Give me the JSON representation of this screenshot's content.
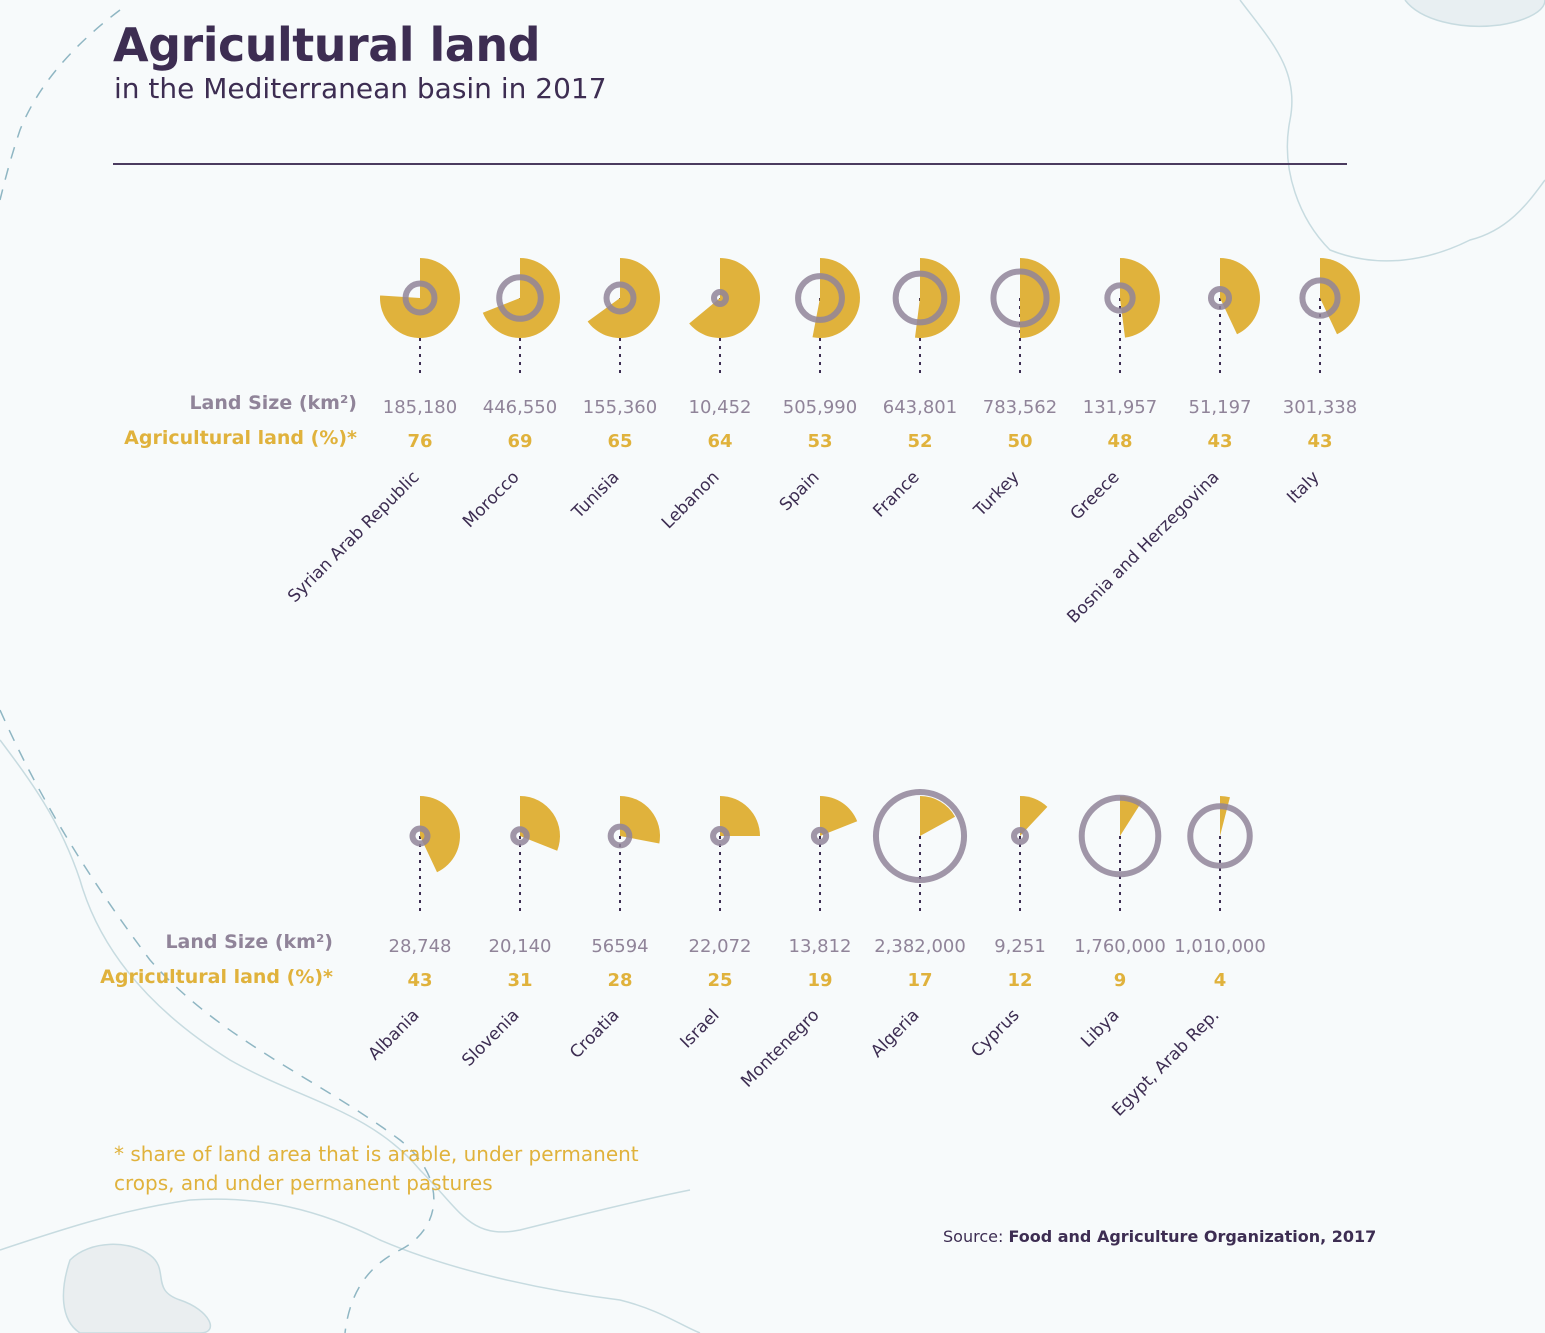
{
  "title": "Agricultural land",
  "subtitle": "in the Mediterranean basin in 2017",
  "row_labels": {
    "land_size": "Land Size (km²)",
    "agricultural_land": "Agricultural land (%)*"
  },
  "footnote": "* share of land area that is arable, under permanent crops, and under permanent pastures",
  "source": {
    "prefix": "Source: ",
    "name": "Food and Agriculture Organization, 2017"
  },
  "colors": {
    "agri": "#e0b23c",
    "ring": "#908499",
    "title": "#3d2d52",
    "map_line": "#c7dbe0",
    "map_dash": "#8fb6c3"
  },
  "chart_data": [
    {
      "type": "pie",
      "encoding": "wedge angle = agricultural land share; ring size = land size",
      "categories": [
        "Syrian Arab Republic",
        "Morocco",
        "Tunisia",
        "Lebanon",
        "Spain",
        "France",
        "Turkey",
        "Greece",
        "Bosnia and Herzegovina",
        "Italy"
      ],
      "land_size_labels": [
        "185,180",
        "446,550",
        "155,360",
        "10,452",
        "505,990",
        "643,801",
        "783,562",
        "131,957",
        "51,197",
        "301,338"
      ],
      "land_size_km2": [
        185180,
        446550,
        155360,
        10452,
        505990,
        643801,
        783562,
        131957,
        51197,
        301338
      ],
      "agricultural_land_pct": [
        76,
        69,
        65,
        64,
        53,
        52,
        50,
        48,
        43,
        43
      ]
    },
    {
      "type": "pie",
      "encoding": "wedge angle = agricultural land share; ring size = land size",
      "categories": [
        "Albania",
        "Slovenia",
        "Croatia",
        "Israel",
        "Montenegro",
        "Algeria",
        "Cyprus",
        "Libya",
        "Egypt, Arab Rep."
      ],
      "land_size_labels": [
        "28,748",
        "20,140",
        "56594",
        "22,072",
        "13,812",
        "2,382,000",
        "9,251",
        "1,760,000",
        "1,010,000"
      ],
      "land_size_km2": [
        28748,
        20140,
        56594,
        22072,
        13812,
        2382000,
        9251,
        1760000,
        1010000
      ],
      "agricultural_land_pct": [
        43,
        31,
        28,
        25,
        19,
        17,
        12,
        9,
        4
      ]
    }
  ]
}
